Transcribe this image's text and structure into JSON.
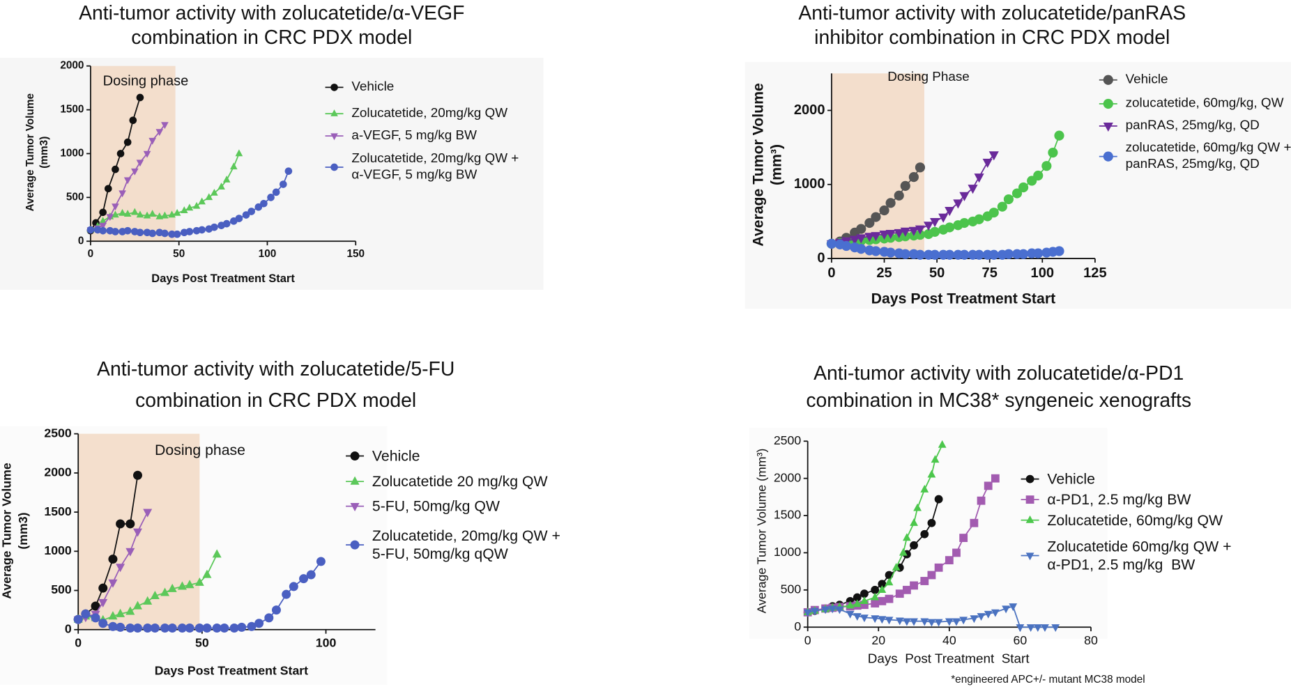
{
  "chart_data": [
    {
      "type": "line",
      "title": [
        "Anti-tumor activity with zolucatetide/α-VEGF",
        "combination in CRC PDX model"
      ],
      "xlabel": "Days Post Treatment Start",
      "ylabel": [
        "Average Tumor Volume",
        "(mm3)"
      ],
      "xlim": [
        0,
        150
      ],
      "ylim": [
        0,
        2000
      ],
      "xticks": [
        0,
        50,
        100,
        150
      ],
      "yticks": [
        0,
        500,
        1000,
        1500,
        2000
      ],
      "shade": {
        "from": 0,
        "to": 48,
        "label": "Dosing phase"
      },
      "series": [
        {
          "name": "Vehicle",
          "color": "#111111",
          "marker": "circle",
          "x": [
            0,
            3,
            7,
            10,
            14,
            17,
            21,
            24,
            28
          ],
          "values": [
            120,
            210,
            330,
            600,
            820,
            1000,
            1130,
            1380,
            1640
          ]
        },
        {
          "name": "Zolucatetide, 20mg/kg QW",
          "color": "#5cc85a",
          "marker": "triangle",
          "x": [
            0,
            4,
            7,
            11,
            14,
            18,
            21,
            25,
            28,
            32,
            35,
            39,
            42,
            46,
            49,
            53,
            56,
            60,
            63,
            67,
            70,
            74,
            77,
            81,
            84
          ],
          "values": [
            130,
            170,
            230,
            280,
            300,
            320,
            310,
            330,
            300,
            290,
            310,
            280,
            290,
            300,
            320,
            350,
            380,
            400,
            450,
            500,
            550,
            620,
            700,
            850,
            1000
          ]
        },
        {
          "name": "a-VEGF, 5 mg/kg BW",
          "color": "#9a5fb8",
          "marker": "triangle-down",
          "x": [
            0,
            4,
            7,
            11,
            14,
            18,
            21,
            25,
            28,
            32,
            35,
            39,
            42
          ],
          "values": [
            130,
            150,
            180,
            280,
            400,
            550,
            700,
            800,
            900,
            1000,
            1150,
            1250,
            1330
          ]
        },
        {
          "name": "Zolucatetide, 20mg/kg QW +\nα-VEGF, 5 mg/kg BW",
          "color": "#4a5fc1",
          "marker": "circle",
          "x": [
            0,
            4,
            7,
            11,
            14,
            18,
            21,
            25,
            28,
            32,
            35,
            39,
            42,
            46,
            49,
            53,
            56,
            60,
            63,
            67,
            70,
            74,
            77,
            81,
            84,
            88,
            91,
            95,
            98,
            102,
            105,
            109,
            112
          ],
          "values": [
            130,
            130,
            120,
            120,
            110,
            110,
            120,
            110,
            100,
            100,
            90,
            100,
            90,
            80,
            80,
            100,
            110,
            120,
            130,
            140,
            160,
            180,
            200,
            230,
            260,
            300,
            340,
            390,
            430,
            500,
            560,
            650,
            800
          ]
        }
      ]
    },
    {
      "type": "line",
      "title": [
        "Anti-tumor activity with zolucatetide/panRAS",
        "inhibitor combination in CRC PDX model"
      ],
      "xlabel": "Days Post Treatment Start",
      "ylabel": [
        "Average Tumor Volume",
        "(mm³)"
      ],
      "xlim": [
        0,
        125
      ],
      "ylim": [
        0,
        2500
      ],
      "xticks": [
        0,
        25,
        50,
        75,
        100,
        125
      ],
      "yticks": [
        0,
        1000,
        2000
      ],
      "shade": {
        "from": 0,
        "to": 44,
        "label": "Dosing Phase"
      },
      "series": [
        {
          "name": "Vehicle",
          "color": "#555555",
          "marker": "circle",
          "x": [
            0,
            4,
            7,
            11,
            14,
            18,
            21,
            25,
            28,
            32,
            35,
            39,
            42
          ],
          "values": [
            200,
            230,
            280,
            350,
            400,
            480,
            560,
            650,
            750,
            850,
            980,
            1100,
            1230
          ]
        },
        {
          "name": "zolucatetide, 60mg/kg, QW",
          "color": "#4cc44c",
          "marker": "circle",
          "x": [
            0,
            4,
            7,
            11,
            14,
            18,
            21,
            25,
            28,
            32,
            35,
            39,
            42,
            46,
            49,
            53,
            56,
            60,
            63,
            67,
            70,
            74,
            77,
            81,
            84,
            88,
            91,
            95,
            98,
            102,
            105,
            108
          ],
          "values": [
            200,
            210,
            220,
            230,
            240,
            250,
            260,
            270,
            280,
            290,
            300,
            310,
            320,
            330,
            360,
            390,
            420,
            450,
            480,
            500,
            530,
            570,
            620,
            700,
            800,
            880,
            960,
            1050,
            1120,
            1250,
            1430,
            1660
          ]
        },
        {
          "name": "panRAS, 25mg/kg, QD",
          "color": "#6a2a9a",
          "marker": "triangle-down",
          "x": [
            0,
            4,
            7,
            11,
            14,
            18,
            21,
            25,
            28,
            32,
            35,
            39,
            42,
            46,
            49,
            53,
            56,
            60,
            63,
            67,
            70,
            74,
            77
          ],
          "values": [
            200,
            220,
            240,
            260,
            280,
            300,
            310,
            330,
            340,
            350,
            370,
            380,
            400,
            450,
            500,
            560,
            650,
            750,
            850,
            950,
            1100,
            1300,
            1400
          ]
        },
        {
          "name": "zolucatetide, 60mg/kg QW +\npanRAS, 25mg/kg, QD",
          "color": "#4a6fd0",
          "marker": "circle",
          "x": [
            0,
            4,
            7,
            11,
            14,
            18,
            21,
            25,
            28,
            32,
            35,
            39,
            42,
            46,
            49,
            53,
            56,
            60,
            63,
            67,
            70,
            74,
            77,
            81,
            84,
            88,
            91,
            95,
            98,
            102,
            105,
            108
          ],
          "values": [
            200,
            190,
            170,
            150,
            130,
            110,
            100,
            90,
            80,
            70,
            60,
            60,
            50,
            50,
            50,
            50,
            50,
            50,
            50,
            50,
            50,
            50,
            50,
            50,
            60,
            60,
            60,
            70,
            70,
            80,
            90,
            100
          ]
        }
      ]
    },
    {
      "type": "line",
      "title": [
        "Anti-tumor activity with zolucatetide/5-FU",
        "combination in CRC PDX model"
      ],
      "xlabel": "Days Post Treatment Start",
      "ylabel": [
        "Average Tumor Volume",
        "(mm3)"
      ],
      "xlim": [
        0,
        120
      ],
      "ylim": [
        0,
        2500
      ],
      "xticks": [
        0,
        50,
        100
      ],
      "yticks": [
        0,
        500,
        1000,
        1500,
        2000,
        2500
      ],
      "shade": {
        "from": 0,
        "to": 49,
        "label": "Dosing phase"
      },
      "series": [
        {
          "name": "Vehicle",
          "color": "#111111",
          "marker": "circle",
          "x": [
            0,
            3,
            7,
            10,
            14,
            17,
            21,
            24
          ],
          "values": [
            130,
            200,
            300,
            530,
            900,
            1350,
            1350,
            1970
          ]
        },
        {
          "name": "Zolucatetide 20 mg/kg QW",
          "color": "#5cc85a",
          "marker": "triangle",
          "x": [
            0,
            3,
            7,
            10,
            14,
            17,
            21,
            24,
            28,
            31,
            35,
            38,
            42,
            45,
            49,
            52,
            56
          ],
          "values": [
            130,
            170,
            150,
            120,
            170,
            200,
            230,
            300,
            360,
            430,
            470,
            520,
            550,
            570,
            600,
            700,
            960
          ]
        },
        {
          "name": "5-FU, 50mg/kg QW",
          "color": "#9a5fb8",
          "marker": "triangle-down",
          "x": [
            0,
            3,
            7,
            10,
            14,
            17,
            21,
            24,
            28
          ],
          "values": [
            130,
            160,
            200,
            350,
            600,
            800,
            1000,
            1250,
            1500
          ]
        },
        {
          "name": "Zolucatetide, 20mg/kg QW +\n5-FU, 50mg/kg qQW",
          "color": "#4a5fc1",
          "marker": "circle",
          "x": [
            0,
            3,
            7,
            10,
            14,
            17,
            21,
            24,
            28,
            31,
            35,
            38,
            42,
            45,
            49,
            52,
            56,
            59,
            63,
            66,
            70,
            73,
            77,
            80,
            84,
            87,
            91,
            94,
            98
          ],
          "values": [
            130,
            200,
            150,
            80,
            40,
            30,
            20,
            20,
            20,
            20,
            20,
            20,
            20,
            20,
            20,
            20,
            20,
            20,
            20,
            30,
            40,
            80,
            150,
            250,
            450,
            550,
            650,
            700,
            870
          ]
        }
      ]
    },
    {
      "type": "line",
      "title": [
        "Anti-tumor activity with zolucatetide/α-PD1",
        "combination in MC38* syngeneic xenografts"
      ],
      "xlabel": "Days  Post Treatment  Start",
      "ylabel": [
        "Average Tumor Volume (mm³)"
      ],
      "footnote": "*engineered APC+/- mutant MC38 model",
      "xlim": [
        0,
        80
      ],
      "ylim": [
        0,
        2500
      ],
      "xticks": [
        0,
        20,
        40,
        60,
        80
      ],
      "yticks": [
        0,
        500,
        1000,
        1500,
        2000,
        2500
      ],
      "series": [
        {
          "name": "Vehicle",
          "color": "#111111",
          "marker": "circle",
          "x": [
            0,
            2,
            5,
            7,
            9,
            12,
            14,
            16,
            19,
            21,
            23,
            26,
            28,
            30,
            33,
            35,
            37
          ],
          "values": [
            200,
            220,
            250,
            280,
            300,
            350,
            400,
            450,
            500,
            580,
            700,
            800,
            980,
            1100,
            1250,
            1400,
            1720
          ]
        },
        {
          "name": "α-PD1, 2.5 mg/kg BW",
          "color": "#a25bb0",
          "marker": "square",
          "x": [
            0,
            2,
            5,
            7,
            9,
            12,
            14,
            16,
            19,
            21,
            23,
            26,
            28,
            30,
            33,
            35,
            37,
            40,
            42,
            44,
            47,
            49,
            51,
            53
          ],
          "values": [
            200,
            230,
            250,
            260,
            270,
            280,
            290,
            300,
            320,
            350,
            380,
            450,
            500,
            560,
            620,
            700,
            800,
            900,
            1000,
            1200,
            1400,
            1700,
            1900,
            2000
          ]
        },
        {
          "name": "Zolucatetide, 60mg/kg QW",
          "color": "#4cc74c",
          "marker": "triangle",
          "x": [
            0,
            2,
            5,
            7,
            9,
            12,
            14,
            16,
            19,
            21,
            23,
            25,
            27,
            28,
            30,
            31,
            33,
            35,
            36,
            38
          ],
          "values": [
            200,
            220,
            240,
            260,
            270,
            290,
            310,
            350,
            400,
            500,
            600,
            800,
            1000,
            1200,
            1400,
            1600,
            1850,
            2050,
            2250,
            2450
          ]
        },
        {
          "name": "Zolucatetide 60mg/kg QW +\nα-PD1, 2.5 mg/kg  BW",
          "color": "#4a72c0",
          "marker": "triangle-down",
          "x": [
            0,
            2,
            5,
            7,
            9,
            12,
            14,
            16,
            19,
            21,
            23,
            26,
            28,
            30,
            33,
            35,
            37,
            40,
            42,
            44,
            47,
            49,
            51,
            53,
            56,
            58,
            60,
            63,
            65,
            67,
            70
          ],
          "values": [
            200,
            220,
            240,
            250,
            240,
            180,
            150,
            130,
            120,
            110,
            100,
            90,
            80,
            80,
            80,
            70,
            70,
            80,
            80,
            100,
            120,
            150,
            180,
            200,
            250,
            280,
            0,
            0,
            0,
            0,
            0
          ]
        }
      ]
    }
  ]
}
